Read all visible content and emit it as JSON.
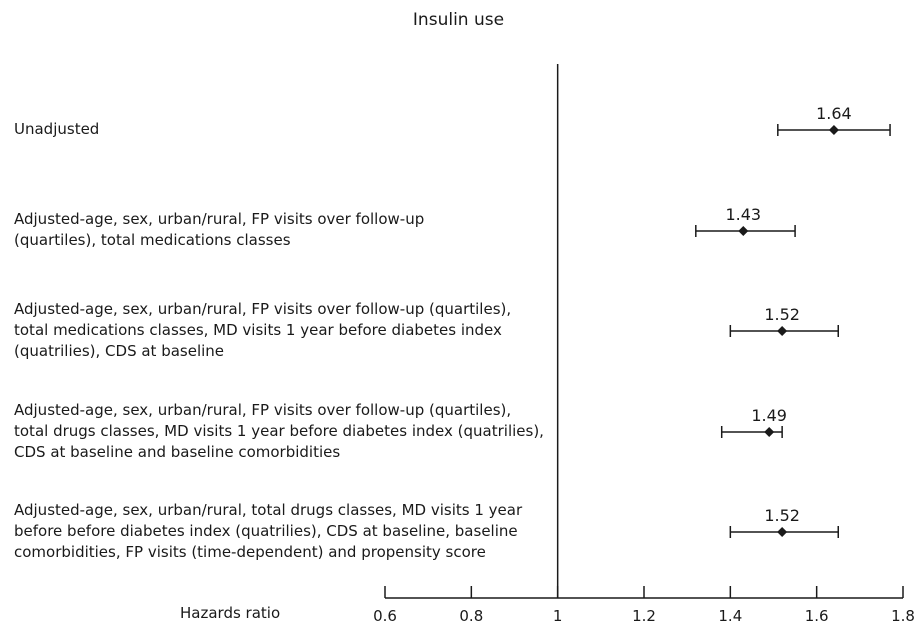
{
  "chart_data": {
    "type": "forest",
    "title": "Insulin use",
    "xlabel": "Hazards ratio",
    "xlim": [
      0.6,
      1.8
    ],
    "x_ticks": [
      "0.6",
      "0.8",
      "1",
      "1.2",
      "1.4",
      "1.6",
      "1.8"
    ],
    "reference_line": 1,
    "grid": false,
    "rows": [
      {
        "label_lines": [
          "Unadjusted"
        ],
        "hr": 1.64,
        "hr_label": "1.64",
        "ci_low": 1.51,
        "ci_high": 1.77
      },
      {
        "label_lines": [
          "Adjusted-age, sex, urban/rural,  FP visits over follow-up",
          "(quartiles), total medications classes"
        ],
        "hr": 1.43,
        "hr_label": "1.43",
        "ci_low": 1.32,
        "ci_high": 1.55
      },
      {
        "label_lines": [
          "Adjusted-age, sex, urban/rural,  FP visits over follow-up (quartiles),",
          "total medications classes, MD visits 1 year before diabetes index",
          "(quatrilies), CDS at baseline"
        ],
        "hr": 1.52,
        "hr_label": "1.52",
        "ci_low": 1.4,
        "ci_high": 1.65
      },
      {
        "label_lines": [
          "Adjusted-age, sex, urban/rural,  FP visits over follow-up (quartiles),",
          "total drugs classes, MD visits 1 year before diabetes index (quatrilies),",
          "CDS at baseline and baseline comorbidities"
        ],
        "hr": 1.49,
        "hr_label": "1.49",
        "ci_low": 1.38,
        "ci_high": 1.52
      },
      {
        "label_lines": [
          "Adjusted-age, sex, urban/rural,  total drugs classes, MD visits 1 year",
          "before before diabetes index (quatrilies), CDS at baseline, baseline",
          "comorbidities, FP visits (time-dependent) and propensity score"
        ],
        "hr": 1.52,
        "hr_label": "1.52",
        "ci_low": 1.4,
        "ci_high": 1.65
      }
    ]
  }
}
